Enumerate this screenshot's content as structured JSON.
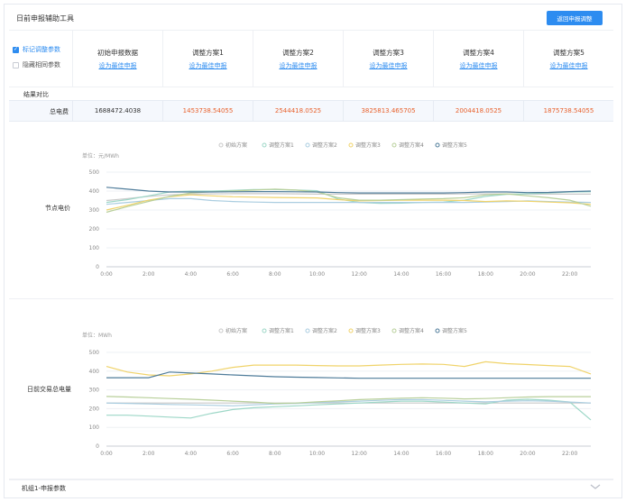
{
  "header": {
    "title": "日前申报辅助工具",
    "return_button": "返回申报调整"
  },
  "options": [
    {
      "label": "标记调整参数",
      "checked": true
    },
    {
      "label": "隐藏相同参数",
      "checked": false
    }
  ],
  "schemes": [
    {
      "name": "初始申报数据",
      "link": "设为最佳申报"
    },
    {
      "name": "调整方案1",
      "link": "设为最佳申报"
    },
    {
      "name": "调整方案2",
      "link": "设为最佳申报"
    },
    {
      "name": "调整方案3",
      "link": "设为最佳申报"
    },
    {
      "name": "调整方案4",
      "link": "设为最佳申报"
    },
    {
      "name": "调整方案5",
      "link": "设为最佳申报"
    }
  ],
  "comparison": {
    "section_label": "结果对比",
    "total_label": "总电费",
    "totals": [
      "1688472.4038",
      "1453738.54055",
      "2544418.0525",
      "3825813.465705",
      "2004418.0525",
      "1875738.54055"
    ],
    "total_colors": [
      "#333333",
      "#e8612c",
      "#e8612c",
      "#e8612c",
      "#e8612c",
      "#e8612c"
    ]
  },
  "colors": {
    "series": [
      "#c9c9c9",
      "#9dd7c7",
      "#aacde0",
      "#f0d36a",
      "#b8cf9a",
      "#4f7c9a"
    ],
    "accent": "#2d8cf0"
  },
  "footer": {
    "label": "机组1-申报参数",
    "icon": "chevron-down-icon"
  },
  "chart_data": [
    {
      "type": "line",
      "row_label": "节点电价",
      "unit": "单位：元/MWh",
      "ylim": [
        0,
        500
      ],
      "yticks": [
        0,
        100,
        200,
        300,
        400,
        500
      ],
      "x_labels": [
        "0:00",
        "2:00",
        "4:00",
        "6:00",
        "8:00",
        "10:00",
        "12:00",
        "14:00",
        "16:00",
        "18:00",
        "20:00",
        "22:00"
      ],
      "x": [
        "0:00",
        "1:00",
        "2:00",
        "3:00",
        "4:00",
        "5:00",
        "6:00",
        "7:00",
        "8:00",
        "9:00",
        "10:00",
        "11:00",
        "12:00",
        "13:00",
        "14:00",
        "15:00",
        "16:00",
        "17:00",
        "18:00",
        "19:00",
        "20:00",
        "21:00",
        "22:00",
        "23:00"
      ],
      "legend_position": "top",
      "series": [
        {
          "name": "初始方案",
          "values": [
            350,
            360,
            372,
            380,
            384,
            385,
            386,
            386,
            386,
            385,
            384,
            384,
            384,
            384,
            384,
            384,
            384,
            385,
            385,
            385,
            384,
            384,
            384,
            384
          ]
        },
        {
          "name": "调整方案1",
          "values": [
            340,
            355,
            375,
            395,
            400,
            400,
            404,
            408,
            408,
            405,
            402,
            358,
            340,
            335,
            336,
            340,
            342,
            352,
            372,
            383,
            386,
            390,
            395,
            396
          ]
        },
        {
          "name": "调整方案2",
          "values": [
            330,
            340,
            350,
            360,
            360,
            350,
            345,
            342,
            340,
            340,
            340,
            340,
            340,
            340,
            340,
            340,
            340,
            340,
            342,
            345,
            348,
            345,
            342,
            340
          ]
        },
        {
          "name": "调整方案3",
          "values": [
            300,
            325,
            352,
            370,
            380,
            375,
            370,
            368,
            366,
            365,
            364,
            355,
            348,
            350,
            352,
            352,
            352,
            350,
            345,
            348,
            346,
            342,
            338,
            330
          ]
        },
        {
          "name": "调整方案4",
          "values": [
            288,
            318,
            345,
            372,
            390,
            396,
            400,
            405,
            410,
            405,
            395,
            365,
            352,
            352,
            355,
            358,
            360,
            365,
            380,
            385,
            375,
            365,
            352,
            320
          ]
        },
        {
          "name": "调整方案5",
          "values": [
            420,
            410,
            400,
            395,
            395,
            395,
            396,
            397,
            397,
            396,
            395,
            392,
            390,
            390,
            390,
            390,
            390,
            392,
            395,
            395,
            392,
            393,
            397,
            400
          ]
        }
      ]
    },
    {
      "type": "line",
      "row_label": "日前交易总电量",
      "unit": "单位：MWh",
      "ylim": [
        0,
        500
      ],
      "yticks": [
        0,
        100,
        200,
        300,
        400,
        500
      ],
      "x_labels": [
        "0:00",
        "2:00",
        "4:00",
        "6:00",
        "8:00",
        "10:00",
        "12:00",
        "14:00",
        "16:00",
        "18:00",
        "20:00",
        "22:00"
      ],
      "x": [
        "0:00",
        "1:00",
        "2:00",
        "3:00",
        "4:00",
        "5:00",
        "6:00",
        "7:00",
        "8:00",
        "9:00",
        "10:00",
        "11:00",
        "12:00",
        "13:00",
        "14:00",
        "15:00",
        "16:00",
        "17:00",
        "18:00",
        "19:00",
        "20:00",
        "21:00",
        "22:00",
        "23:00"
      ],
      "legend_position": "top",
      "series": [
        {
          "name": "初始方案",
          "values": [
            230,
            230,
            230,
            230,
            230,
            230,
            230,
            230,
            230,
            230,
            230,
            230,
            230,
            230,
            230,
            230,
            230,
            230,
            230,
            230,
            230,
            230,
            230,
            230
          ]
        },
        {
          "name": "调整方案1",
          "values": [
            165,
            165,
            160,
            155,
            150,
            175,
            195,
            205,
            210,
            215,
            220,
            225,
            230,
            235,
            240,
            240,
            235,
            230,
            225,
            245,
            250,
            245,
            235,
            140
          ]
        },
        {
          "name": "调整方案2",
          "values": [
            230,
            228,
            225,
            222,
            220,
            218,
            215,
            220,
            225,
            228,
            232,
            236,
            240,
            244,
            248,
            248,
            244,
            240,
            236,
            240,
            242,
            240,
            235,
            230
          ]
        },
        {
          "name": "调整方案3",
          "values": [
            425,
            395,
            380,
            375,
            385,
            400,
            420,
            432,
            432,
            432,
            430,
            428,
            428,
            432,
            436,
            438,
            436,
            425,
            450,
            440,
            435,
            430,
            425,
            385
          ]
        },
        {
          "name": "调整方案4",
          "values": [
            265,
            262,
            258,
            254,
            250,
            245,
            240,
            235,
            228,
            230,
            236,
            242,
            248,
            252,
            256,
            258,
            256,
            252,
            254,
            258,
            262,
            264,
            264,
            264
          ]
        },
        {
          "name": "调整方案5",
          "values": [
            365,
            365,
            365,
            395,
            390,
            385,
            380,
            375,
            370,
            368,
            366,
            364,
            362,
            362,
            362,
            362,
            362,
            362,
            362,
            362,
            362,
            362,
            362,
            362
          ]
        }
      ]
    }
  ]
}
